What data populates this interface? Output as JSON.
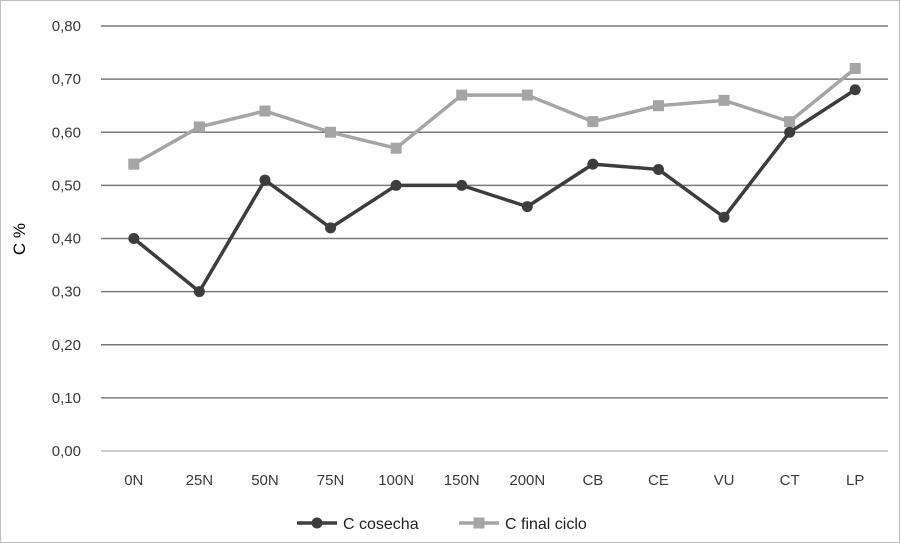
{
  "chart_data": {
    "type": "line",
    "title": "",
    "xlabel": "",
    "ylabel": "C %",
    "ylim": [
      0,
      0.8
    ],
    "ytick_step": 0.1,
    "ytick_labels": [
      "0,00",
      "0,10",
      "0,20",
      "0,30",
      "0,40",
      "0,50",
      "0,60",
      "0,70",
      "0,80"
    ],
    "categories": [
      "0N",
      "25N",
      "50N",
      "75N",
      "100N",
      "150N",
      "200N",
      "CB",
      "CE",
      "VU",
      "CT",
      "LP"
    ],
    "grid": true,
    "legend_position": "bottom",
    "series": [
      {
        "name": "C cosecha",
        "color": "#3d3d3d",
        "marker": "circle",
        "values": [
          0.4,
          0.3,
          0.51,
          0.42,
          0.5,
          0.5,
          0.46,
          0.54,
          0.53,
          0.44,
          0.6,
          0.68
        ]
      },
      {
        "name": "C final ciclo",
        "color": "#a5a5a5",
        "marker": "square",
        "values": [
          0.54,
          0.61,
          0.64,
          0.6,
          0.57,
          0.67,
          0.67,
          0.62,
          0.65,
          0.66,
          0.62,
          0.72
        ]
      }
    ]
  }
}
